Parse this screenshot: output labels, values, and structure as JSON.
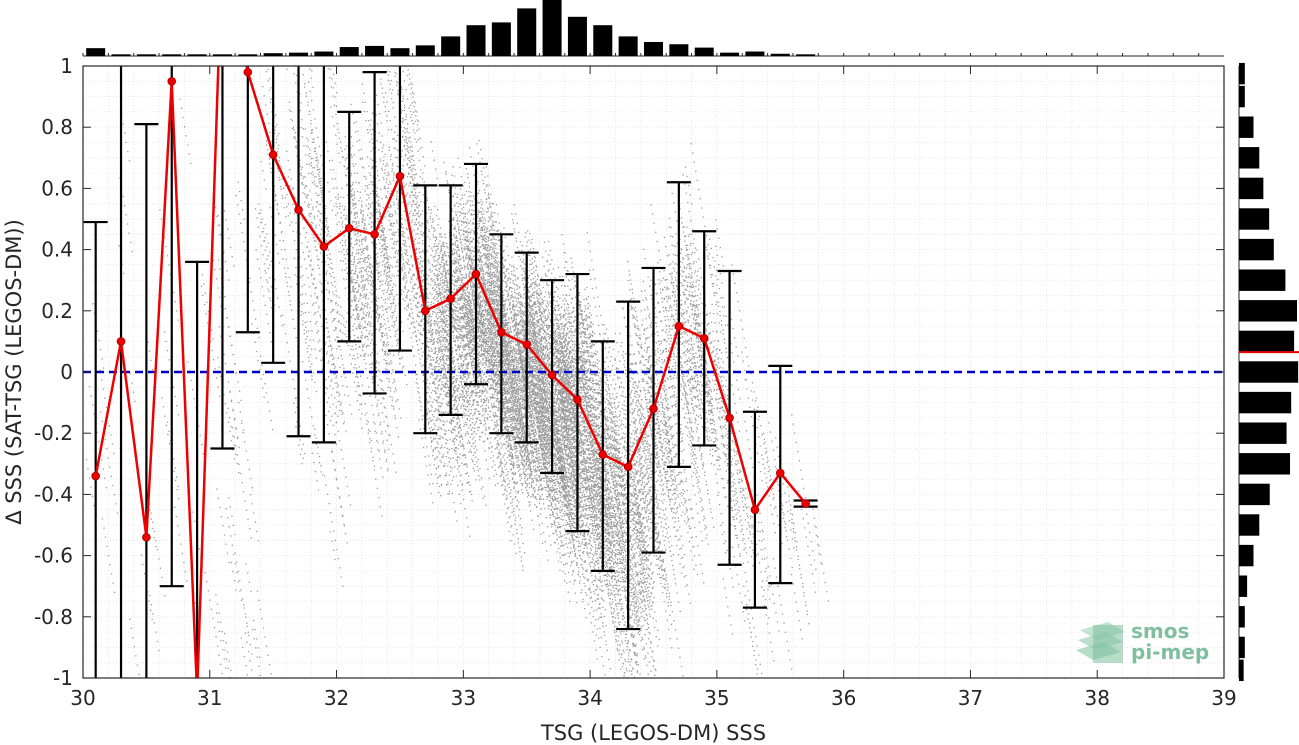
{
  "chart_data": {
    "type": "scatter",
    "title": "",
    "xlabel": "TSG (LEGOS-DM) SSS",
    "ylabel": "Δ SSS (SAT-TSG (LEGOS-DM))",
    "xlim": [
      30,
      39
    ],
    "ylim": [
      -1,
      1
    ],
    "x_ticks": [
      "30",
      "31",
      "32",
      "33",
      "34",
      "35",
      "36",
      "37",
      "38",
      "39"
    ],
    "y_ticks": [
      "1",
      "0.8",
      "0.6",
      "0.4",
      "0.2",
      "0",
      "-0.2",
      "-0.4",
      "-0.6",
      "-0.8",
      "-1"
    ],
    "grid": true,
    "zero_line": {
      "y": 0,
      "color": "#0000cc",
      "style": "dashed"
    },
    "binned_mean": {
      "color": "#ee0000",
      "x": [
        30.1,
        30.3,
        30.5,
        30.7,
        30.9,
        31.1,
        31.3,
        31.5,
        31.7,
        31.9,
        32.1,
        32.3,
        32.5,
        32.7,
        32.9,
        33.1,
        33.3,
        33.5,
        33.7,
        33.9,
        34.1,
        34.3,
        34.5,
        34.7,
        34.9,
        35.1,
        35.3,
        35.5,
        35.7
      ],
      "mean": [
        -0.34,
        0.1,
        -0.54,
        0.95,
        -1.05,
        1.4,
        0.98,
        0.71,
        0.53,
        0.41,
        0.47,
        0.45,
        0.64,
        0.2,
        0.24,
        0.32,
        0.13,
        0.09,
        -0.01,
        -0.09,
        -0.27,
        -0.31,
        -0.12,
        0.15,
        0.11,
        -0.15,
        -0.45,
        -0.33,
        -0.43
      ],
      "err_low": [
        -1.2,
        -1.2,
        -1.2,
        -0.7,
        -1.2,
        -0.25,
        0.13,
        0.03,
        -0.21,
        -0.23,
        0.1,
        -0.07,
        0.07,
        -0.2,
        -0.14,
        -0.04,
        -0.2,
        -0.23,
        -0.33,
        -0.52,
        -0.65,
        -0.84,
        -0.59,
        -0.31,
        -0.24,
        -0.63,
        -0.77,
        -0.69,
        -0.44
      ],
      "err_high": [
        0.49,
        1.2,
        0.81,
        1.2,
        0.36,
        1.2,
        1.2,
        1.2,
        1.2,
        1.2,
        0.85,
        0.98,
        1.2,
        0.61,
        0.61,
        0.68,
        0.45,
        0.39,
        0.3,
        0.32,
        0.1,
        0.23,
        0.34,
        0.62,
        0.46,
        0.33,
        -0.13,
        0.02,
        -0.42
      ]
    },
    "scatter_color": "#8c8c8c",
    "top_histogram": {
      "bin_centers": [
        30.1,
        30.3,
        30.5,
        30.7,
        30.9,
        31.1,
        31.3,
        31.5,
        31.7,
        31.9,
        32.1,
        32.3,
        32.5,
        32.7,
        32.9,
        33.1,
        33.3,
        33.5,
        33.7,
        33.9,
        34.1,
        34.3,
        34.5,
        34.7,
        34.9,
        35.1,
        35.3,
        35.5,
        35.7
      ],
      "relative_counts": [
        0.14,
        0.03,
        0.03,
        0.03,
        0.03,
        0.03,
        0.03,
        0.05,
        0.06,
        0.08,
        0.16,
        0.18,
        0.14,
        0.19,
        0.35,
        0.55,
        0.6,
        0.85,
        1.0,
        0.7,
        0.55,
        0.35,
        0.25,
        0.21,
        0.15,
        0.06,
        0.08,
        0.04,
        0.03
      ]
    },
    "right_histogram": {
      "bin_centers": [
        0.975,
        0.9,
        0.8,
        0.7,
        0.6,
        0.5,
        0.4,
        0.3,
        0.2,
        0.1,
        0.0,
        -0.1,
        -0.2,
        -0.3,
        -0.4,
        -0.5,
        -0.6,
        -0.7,
        -0.8,
        -0.9,
        -0.975
      ],
      "relative_counts": [
        0.1,
        0.1,
        0.25,
        0.35,
        0.42,
        0.52,
        0.6,
        0.8,
        1.0,
        0.95,
        1.02,
        0.9,
        0.82,
        0.88,
        0.53,
        0.35,
        0.25,
        0.14,
        0.1,
        0.1,
        0.08
      ],
      "mean_marker": {
        "y": 0.065,
        "color": "#ee0000"
      }
    }
  },
  "logo": {
    "line1": "smos",
    "line2": "pi-mep",
    "color": "#7fbf9f"
  }
}
